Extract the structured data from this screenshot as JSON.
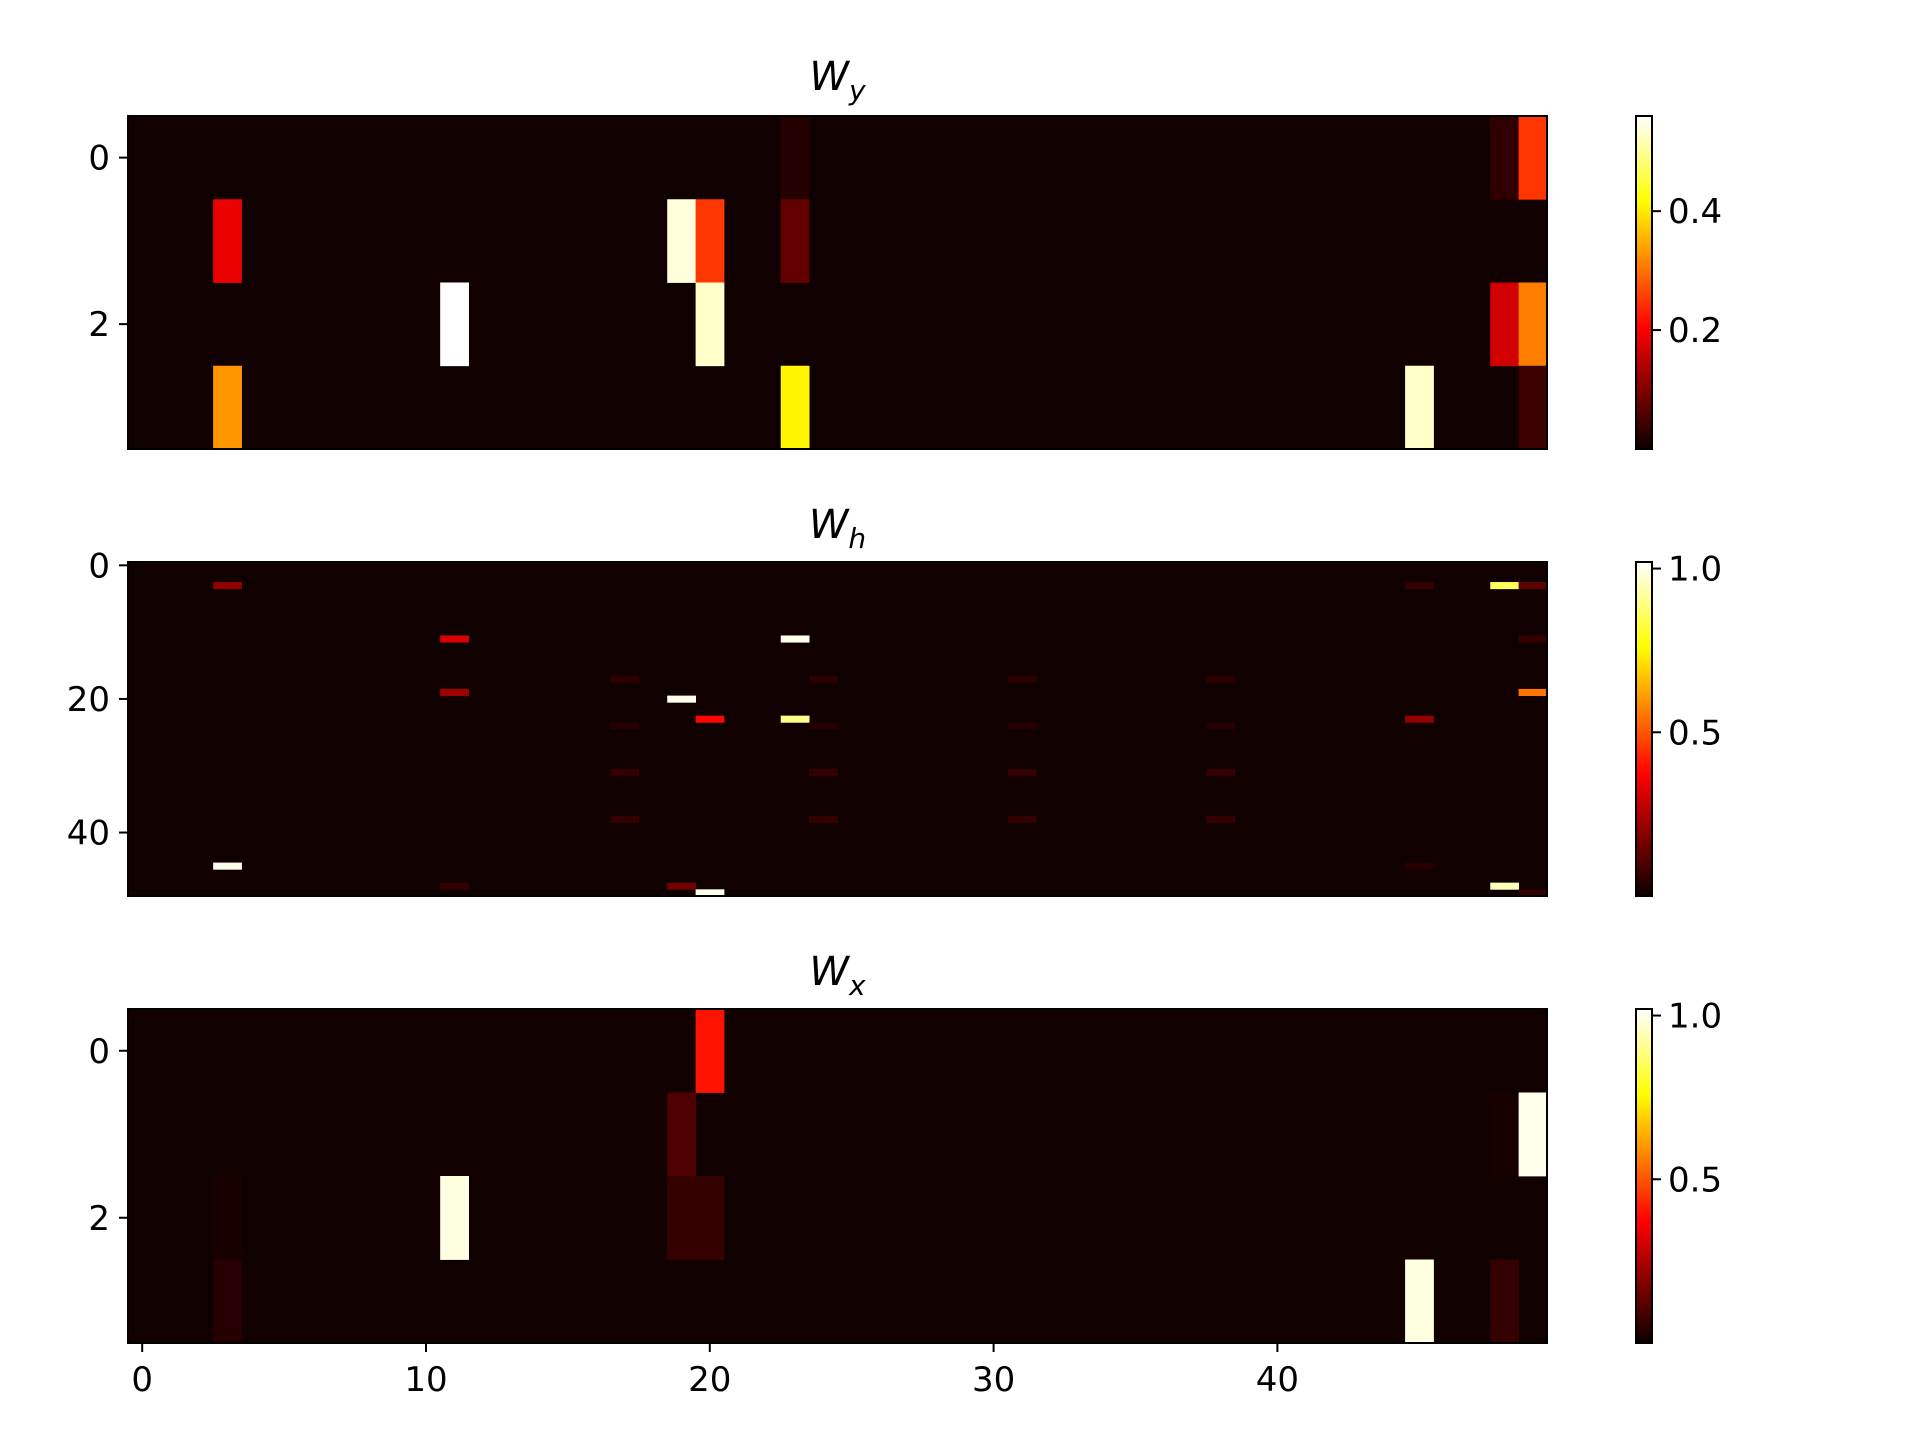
{
  "chart_data": [
    {
      "type": "heatmap",
      "title": "W",
      "title_sub": "y",
      "colormap": "hot",
      "n_rows": 4,
      "n_cols": 50,
      "y_ticks": [
        0,
        2
      ],
      "x_ticks": [],
      "colorbar": {
        "vmin": 0.0,
        "vmax": 0.56,
        "ticks": [
          0.2,
          0.4
        ],
        "tick_labels": [
          "0.2",
          "0.4"
        ]
      },
      "background_value": 0.005,
      "cells": [
        {
          "row": 0,
          "col": 23,
          "value": 0.02
        },
        {
          "row": 0,
          "col": 48,
          "value": 0.03
        },
        {
          "row": 0,
          "col": 49,
          "value": 0.25
        },
        {
          "row": 1,
          "col": 3,
          "value": 0.18
        },
        {
          "row": 1,
          "col": 19,
          "value": 0.54
        },
        {
          "row": 1,
          "col": 20,
          "value": 0.25
        },
        {
          "row": 1,
          "col": 23,
          "value": 0.07
        },
        {
          "row": 2,
          "col": 11,
          "value": 0.56
        },
        {
          "row": 2,
          "col": 20,
          "value": 0.53
        },
        {
          "row": 2,
          "col": 48,
          "value": 0.16
        },
        {
          "row": 2,
          "col": 49,
          "value": 0.31
        },
        {
          "row": 3,
          "col": 3,
          "value": 0.33
        },
        {
          "row": 3,
          "col": 23,
          "value": 0.41
        },
        {
          "row": 3,
          "col": 45,
          "value": 0.53
        },
        {
          "row": 3,
          "col": 49,
          "value": 0.04
        }
      ]
    },
    {
      "type": "heatmap",
      "title": "W",
      "title_sub": "h",
      "colormap": "hot",
      "n_rows": 50,
      "n_cols": 50,
      "y_ticks": [
        0,
        20,
        40
      ],
      "x_ticks": [],
      "colorbar": {
        "vmin": 0.0,
        "vmax": 1.02,
        "ticks": [
          0.5,
          1.0
        ],
        "tick_labels": [
          "0.5",
          "1.0"
        ]
      },
      "background_value": 0.008,
      "cells": [
        {
          "row": 3,
          "col": 3,
          "value": 0.2
        },
        {
          "row": 3,
          "col": 45,
          "value": 0.06
        },
        {
          "row": 3,
          "col": 48,
          "value": 0.85
        },
        {
          "row": 3,
          "col": 49,
          "value": 0.12
        },
        {
          "row": 11,
          "col": 11,
          "value": 0.3
        },
        {
          "row": 11,
          "col": 23,
          "value": 1.0
        },
        {
          "row": 11,
          "col": 49,
          "value": 0.06
        },
        {
          "row": 17,
          "col": 17,
          "value": 0.05
        },
        {
          "row": 17,
          "col": 24,
          "value": 0.05
        },
        {
          "row": 17,
          "col": 31,
          "value": 0.05
        },
        {
          "row": 17,
          "col": 38,
          "value": 0.05
        },
        {
          "row": 19,
          "col": 11,
          "value": 0.22
        },
        {
          "row": 19,
          "col": 49,
          "value": 0.55
        },
        {
          "row": 20,
          "col": 19,
          "value": 1.0
        },
        {
          "row": 23,
          "col": 20,
          "value": 0.38
        },
        {
          "row": 23,
          "col": 23,
          "value": 0.9
        },
        {
          "row": 23,
          "col": 45,
          "value": 0.2
        },
        {
          "row": 24,
          "col": 17,
          "value": 0.04
        },
        {
          "row": 24,
          "col": 24,
          "value": 0.04
        },
        {
          "row": 24,
          "col": 31,
          "value": 0.04
        },
        {
          "row": 24,
          "col": 38,
          "value": 0.04
        },
        {
          "row": 31,
          "col": 17,
          "value": 0.06
        },
        {
          "row": 31,
          "col": 24,
          "value": 0.06
        },
        {
          "row": 31,
          "col": 31,
          "value": 0.06
        },
        {
          "row": 31,
          "col": 38,
          "value": 0.06
        },
        {
          "row": 38,
          "col": 17,
          "value": 0.06
        },
        {
          "row": 38,
          "col": 24,
          "value": 0.06
        },
        {
          "row": 38,
          "col": 31,
          "value": 0.06
        },
        {
          "row": 38,
          "col": 38,
          "value": 0.06
        },
        {
          "row": 45,
          "col": 3,
          "value": 1.0
        },
        {
          "row": 45,
          "col": 45,
          "value": 0.04
        },
        {
          "row": 48,
          "col": 11,
          "value": 0.06
        },
        {
          "row": 48,
          "col": 19,
          "value": 0.15
        },
        {
          "row": 48,
          "col": 48,
          "value": 0.95
        },
        {
          "row": 49,
          "col": 20,
          "value": 1.0
        },
        {
          "row": 49,
          "col": 49,
          "value": 0.06
        }
      ]
    },
    {
      "type": "heatmap",
      "title": "W",
      "title_sub": "x",
      "colormap": "hot",
      "n_rows": 4,
      "n_cols": 50,
      "y_ticks": [
        0,
        2
      ],
      "x_ticks": [
        0,
        10,
        20,
        30,
        40
      ],
      "x_tick_labels": [
        "0",
        "10",
        "20",
        "30",
        "40"
      ],
      "colorbar": {
        "vmin": 0.0,
        "vmax": 1.02,
        "ticks": [
          0.5,
          1.0
        ],
        "tick_labels": [
          "0.5",
          "1.0"
        ]
      },
      "background_value": 0.01,
      "cells": [
        {
          "row": 0,
          "col": 20,
          "value": 0.4
        },
        {
          "row": 1,
          "col": 19,
          "value": 0.1
        },
        {
          "row": 1,
          "col": 48,
          "value": 0.02
        },
        {
          "row": 1,
          "col": 49,
          "value": 1.0
        },
        {
          "row": 2,
          "col": 3,
          "value": 0.02
        },
        {
          "row": 2,
          "col": 11,
          "value": 0.99
        },
        {
          "row": 2,
          "col": 19,
          "value": 0.06
        },
        {
          "row": 2,
          "col": 20,
          "value": 0.06
        },
        {
          "row": 3,
          "col": 3,
          "value": 0.04
        },
        {
          "row": 3,
          "col": 45,
          "value": 0.99
        },
        {
          "row": 3,
          "col": 48,
          "value": 0.06
        }
      ]
    }
  ]
}
